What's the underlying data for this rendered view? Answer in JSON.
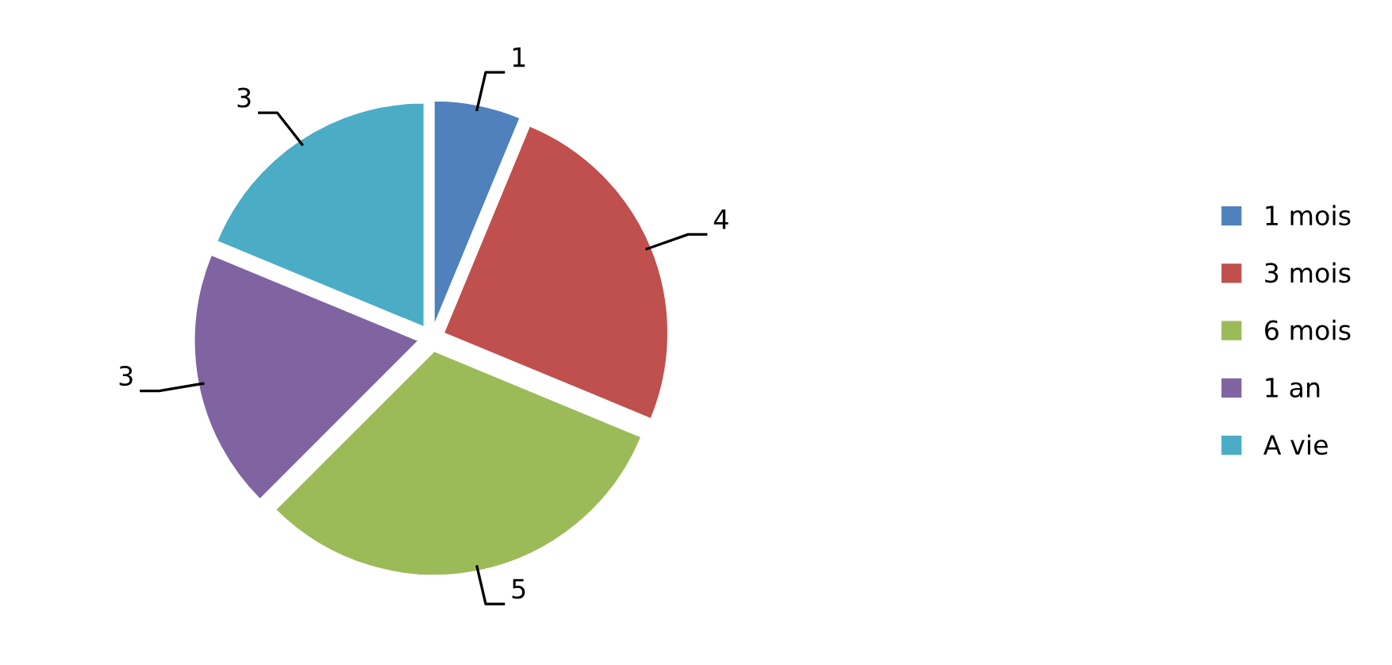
{
  "chart_data": {
    "type": "pie",
    "categories": [
      "1 mois",
      "3 mois",
      "6 mois",
      "1 an",
      "A vie"
    ],
    "values": [
      1,
      4,
      5,
      3,
      3
    ],
    "colors": [
      "#4f81bd",
      "#c0504d",
      "#9bbb59",
      "#8064a2",
      "#4bacc6"
    ],
    "data_labels": true,
    "legend": "right"
  }
}
